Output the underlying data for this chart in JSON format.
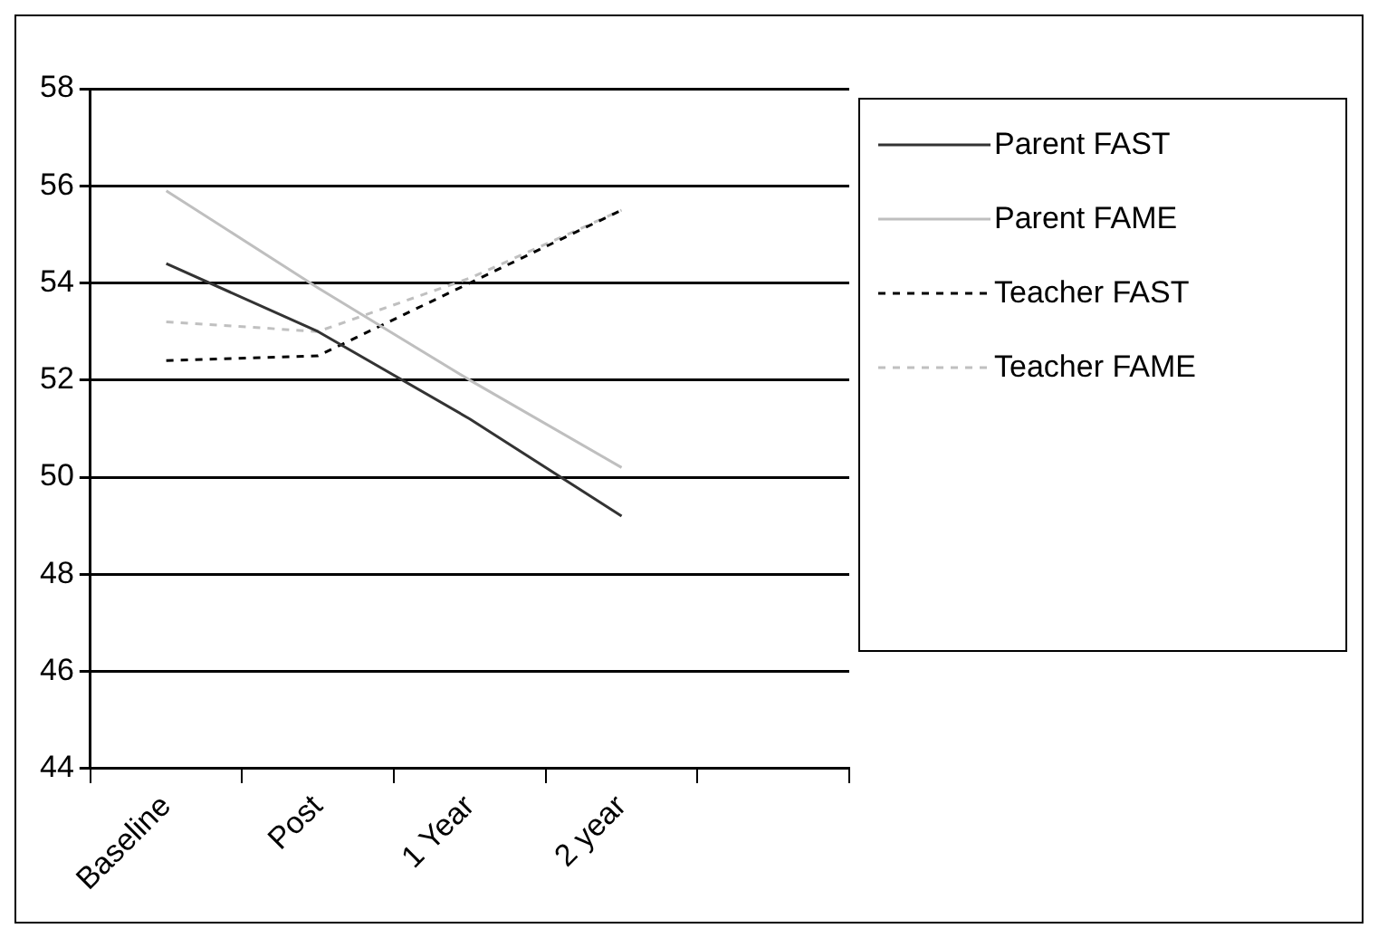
{
  "chart_data": {
    "type": "line",
    "categories": [
      "Baseline",
      "Post",
      "1 Year",
      "2 year",
      null
    ],
    "ylim": [
      44,
      58
    ],
    "yticks": [
      44,
      46,
      48,
      50,
      52,
      54,
      56,
      58
    ],
    "grid": "y",
    "legend": "right",
    "marker": "none",
    "series": [
      {
        "name": "Parent FAST",
        "color": "#333333",
        "line_style": "solid",
        "values": [
          54.4,
          53.0,
          51.2,
          49.2,
          null
        ]
      },
      {
        "name": "Parent FAME",
        "color": "#bfbfbf",
        "line_style": "solid",
        "values": [
          55.9,
          53.9,
          52.0,
          50.2,
          null
        ]
      },
      {
        "name": "Teacher FAST",
        "color": "#000000",
        "line_style": "dashed",
        "values": [
          52.4,
          52.5,
          54.0,
          55.5,
          null
        ]
      },
      {
        "name": "Teacher FAME",
        "color": "#c0c0c0",
        "line_style": "dashed",
        "values": [
          53.2,
          53.0,
          54.1,
          55.5,
          null
        ]
      }
    ]
  }
}
